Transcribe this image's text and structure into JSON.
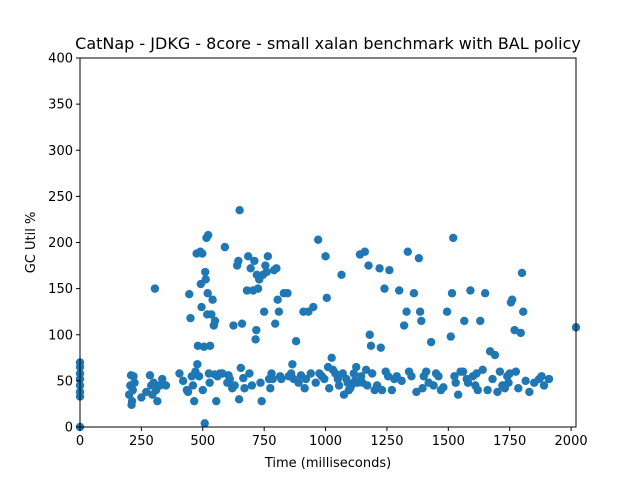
{
  "chart_data": {
    "type": "scatter",
    "title": "CatNap - JDKG - 8core -  small xalan benchmark with BAL policy",
    "xlabel": "Time (milliseconds)",
    "ylabel": "GC Util %",
    "xlim": [
      0,
      2020
    ],
    "ylim": [
      0,
      400
    ],
    "xticks": [
      0,
      250,
      500,
      750,
      1000,
      1250,
      1500,
      1750,
      2000
    ],
    "yticks": [
      0,
      50,
      100,
      150,
      200,
      250,
      300,
      350,
      400
    ],
    "grid": false,
    "marker_color": "#1f77b4",
    "series": [
      {
        "points": [
          [
            0,
            70
          ],
          [
            0,
            65
          ],
          [
            0,
            58
          ],
          [
            0,
            52
          ],
          [
            0,
            45
          ],
          [
            0,
            38
          ],
          [
            0,
            33
          ],
          [
            0,
            0
          ],
          [
            200,
            35
          ],
          [
            205,
            45
          ],
          [
            208,
            56
          ],
          [
            210,
            24
          ],
          [
            212,
            28
          ],
          [
            215,
            40
          ],
          [
            218,
            55
          ],
          [
            222,
            48
          ],
          [
            250,
            32
          ],
          [
            270,
            38
          ],
          [
            285,
            56
          ],
          [
            290,
            45
          ],
          [
            295,
            35
          ],
          [
            300,
            48
          ],
          [
            305,
            150
          ],
          [
            310,
            40
          ],
          [
            315,
            28
          ],
          [
            325,
            45
          ],
          [
            335,
            52
          ],
          [
            350,
            45
          ],
          [
            405,
            58
          ],
          [
            420,
            50
          ],
          [
            435,
            40
          ],
          [
            440,
            38
          ],
          [
            445,
            144
          ],
          [
            450,
            118
          ],
          [
            455,
            55
          ],
          [
            460,
            45
          ],
          [
            465,
            28
          ],
          [
            470,
            60
          ],
          [
            475,
            188
          ],
          [
            478,
            68
          ],
          [
            480,
            88
          ],
          [
            485,
            55
          ],
          [
            490,
            190
          ],
          [
            492,
            155
          ],
          [
            495,
            130
          ],
          [
            498,
            188
          ],
          [
            500,
            40
          ],
          [
            505,
            87
          ],
          [
            508,
            4
          ],
          [
            510,
            168
          ],
          [
            512,
            160
          ],
          [
            515,
            205
          ],
          [
            518,
            122
          ],
          [
            520,
            145
          ],
          [
            522,
            208
          ],
          [
            525,
            58
          ],
          [
            528,
            48
          ],
          [
            530,
            88
          ],
          [
            535,
            122
          ],
          [
            540,
            138
          ],
          [
            545,
            110
          ],
          [
            548,
            57
          ],
          [
            550,
            115
          ],
          [
            555,
            28
          ],
          [
            560,
            55
          ],
          [
            570,
            58
          ],
          [
            580,
            58
          ],
          [
            590,
            195
          ],
          [
            600,
            48
          ],
          [
            605,
            56
          ],
          [
            610,
            52
          ],
          [
            620,
            42
          ],
          [
            625,
            110
          ],
          [
            630,
            45
          ],
          [
            640,
            175
          ],
          [
            645,
            180
          ],
          [
            648,
            30
          ],
          [
            650,
            235
          ],
          [
            655,
            64
          ],
          [
            660,
            112
          ],
          [
            665,
            53
          ],
          [
            670,
            42
          ],
          [
            680,
            148
          ],
          [
            685,
            185
          ],
          [
            690,
            58
          ],
          [
            695,
            172
          ],
          [
            700,
            45
          ],
          [
            705,
            148
          ],
          [
            710,
            180
          ],
          [
            715,
            95
          ],
          [
            718,
            105
          ],
          [
            720,
            165
          ],
          [
            725,
            150
          ],
          [
            730,
            160
          ],
          [
            735,
            48
          ],
          [
            740,
            28
          ],
          [
            745,
            165
          ],
          [
            750,
            125
          ],
          [
            755,
            175
          ],
          [
            760,
            168
          ],
          [
            765,
            185
          ],
          [
            770,
            52
          ],
          [
            775,
            42
          ],
          [
            780,
            58
          ],
          [
            785,
            52
          ],
          [
            790,
            170
          ],
          [
            795,
            112
          ],
          [
            800,
            172
          ],
          [
            805,
            138
          ],
          [
            810,
            125
          ],
          [
            815,
            55
          ],
          [
            820,
            52
          ],
          [
            830,
            145
          ],
          [
            845,
            145
          ],
          [
            850,
            55
          ],
          [
            860,
            58
          ],
          [
            865,
            68
          ],
          [
            870,
            52
          ],
          [
            880,
            93
          ],
          [
            890,
            48
          ],
          [
            900,
            56
          ],
          [
            910,
            125
          ],
          [
            915,
            42
          ],
          [
            920,
            52
          ],
          [
            930,
            125
          ],
          [
            940,
            58
          ],
          [
            950,
            130
          ],
          [
            960,
            48
          ],
          [
            970,
            203
          ],
          [
            975,
            58
          ],
          [
            985,
            55
          ],
          [
            995,
            52
          ],
          [
            1000,
            185
          ],
          [
            1005,
            140
          ],
          [
            1010,
            65
          ],
          [
            1015,
            42
          ],
          [
            1025,
            75
          ],
          [
            1030,
            62
          ],
          [
            1040,
            58
          ],
          [
            1050,
            52
          ],
          [
            1055,
            45
          ],
          [
            1065,
            165
          ],
          [
            1070,
            58
          ],
          [
            1075,
            35
          ],
          [
            1085,
            52
          ],
          [
            1090,
            48
          ],
          [
            1095,
            40
          ],
          [
            1100,
            42
          ],
          [
            1105,
            45
          ],
          [
            1115,
            58
          ],
          [
            1120,
            50
          ],
          [
            1125,
            65
          ],
          [
            1130,
            48
          ],
          [
            1140,
            187
          ],
          [
            1145,
            55
          ],
          [
            1150,
            48
          ],
          [
            1160,
            190
          ],
          [
            1165,
            62
          ],
          [
            1170,
            45
          ],
          [
            1175,
            175
          ],
          [
            1180,
            100
          ],
          [
            1185,
            88
          ],
          [
            1190,
            58
          ],
          [
            1200,
            40
          ],
          [
            1210,
            45
          ],
          [
            1220,
            172
          ],
          [
            1225,
            86
          ],
          [
            1230,
            40
          ],
          [
            1240,
            150
          ],
          [
            1245,
            60
          ],
          [
            1255,
            55
          ],
          [
            1260,
            170
          ],
          [
            1270,
            40
          ],
          [
            1280,
            52
          ],
          [
            1290,
            55
          ],
          [
            1300,
            148
          ],
          [
            1310,
            50
          ],
          [
            1320,
            110
          ],
          [
            1330,
            125
          ],
          [
            1335,
            190
          ],
          [
            1340,
            60
          ],
          [
            1350,
            55
          ],
          [
            1360,
            145
          ],
          [
            1370,
            38
          ],
          [
            1380,
            183
          ],
          [
            1385,
            125
          ],
          [
            1390,
            115
          ],
          [
            1395,
            42
          ],
          [
            1400,
            55
          ],
          [
            1410,
            60
          ],
          [
            1420,
            48
          ],
          [
            1430,
            92
          ],
          [
            1440,
            45
          ],
          [
            1450,
            58
          ],
          [
            1460,
            55
          ],
          [
            1470,
            40
          ],
          [
            1480,
            43
          ],
          [
            1495,
            125
          ],
          [
            1510,
            98
          ],
          [
            1515,
            145
          ],
          [
            1520,
            205
          ],
          [
            1525,
            55
          ],
          [
            1530,
            48
          ],
          [
            1540,
            35
          ],
          [
            1550,
            60
          ],
          [
            1560,
            60
          ],
          [
            1565,
            115
          ],
          [
            1575,
            52
          ],
          [
            1580,
            48
          ],
          [
            1590,
            148
          ],
          [
            1600,
            55
          ],
          [
            1610,
            45
          ],
          [
            1615,
            58
          ],
          [
            1620,
            40
          ],
          [
            1630,
            115
          ],
          [
            1640,
            62
          ],
          [
            1650,
            145
          ],
          [
            1660,
            40
          ],
          [
            1670,
            82
          ],
          [
            1680,
            52
          ],
          [
            1690,
            78
          ],
          [
            1700,
            38
          ],
          [
            1710,
            60
          ],
          [
            1720,
            45
          ],
          [
            1730,
            42
          ],
          [
            1740,
            55
          ],
          [
            1745,
            48
          ],
          [
            1750,
            58
          ],
          [
            1755,
            135
          ],
          [
            1760,
            138
          ],
          [
            1770,
            105
          ],
          [
            1775,
            60
          ],
          [
            1785,
            42
          ],
          [
            1795,
            102
          ],
          [
            1800,
            167
          ],
          [
            1805,
            125
          ],
          [
            1815,
            50
          ],
          [
            1830,
            38
          ],
          [
            1850,
            48
          ],
          [
            1870,
            52
          ],
          [
            1880,
            55
          ],
          [
            1890,
            45
          ],
          [
            1910,
            52
          ],
          [
            2020,
            108
          ]
        ]
      }
    ]
  }
}
